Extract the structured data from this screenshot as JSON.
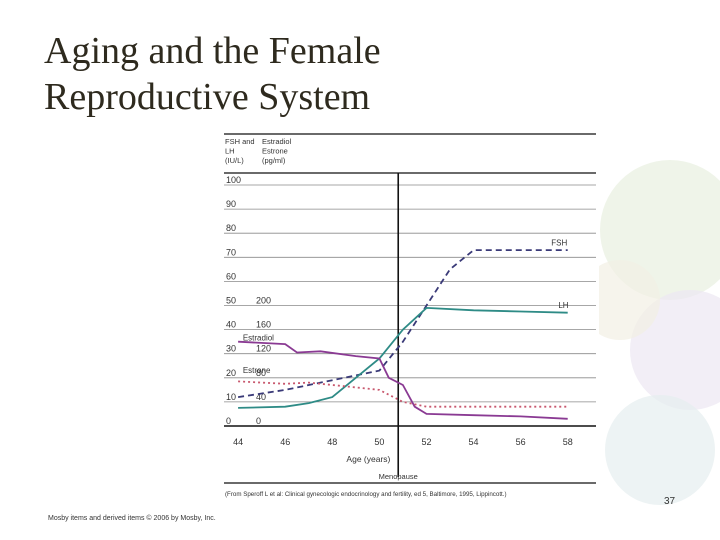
{
  "slide": {
    "title_line1": "Aging and the Female",
    "title_line2": "Reproductive System",
    "footer": "Mosby items and derived items © 2006 by Mosby, Inc.",
    "page_number": "37"
  },
  "chart_data": {
    "type": "line",
    "title": "",
    "left_axis_header": [
      "FSH and",
      "LH",
      "(IU/L)"
    ],
    "right_axis_header": [
      "Estradiol",
      "Estrone",
      "(pg/ml)"
    ],
    "xlabel": "Age (years)",
    "x_ticks": [
      "44",
      "46",
      "48",
      "50",
      "52",
      "54",
      "56",
      "58"
    ],
    "xlim": [
      43.4,
      59.2
    ],
    "y_ticks_iu": [
      "100",
      "90",
      "80",
      "70",
      "60",
      "50",
      "40",
      "30",
      "20",
      "10",
      "0"
    ],
    "y_ticks_pg": [
      "200",
      "160",
      "120",
      "80",
      "40",
      "0"
    ],
    "y_ticks_pg_values": [
      50,
      40,
      30,
      20,
      10,
      0
    ],
    "ylim": [
      0,
      100
    ],
    "grid": true,
    "menopause": {
      "age": 50.8,
      "label": "Menopause"
    },
    "series": [
      {
        "name": "FSH",
        "color": "#3a3a78",
        "dash": "6,4",
        "x": [
          44,
          46,
          48,
          50,
          51,
          52,
          53,
          54,
          56,
          58
        ],
        "y": [
          12,
          15,
          19,
          23,
          35,
          50,
          65,
          73,
          73,
          73
        ]
      },
      {
        "name": "LH",
        "color": "#2e8b86",
        "dash": "",
        "x": [
          44,
          46,
          47,
          48,
          49,
          50,
          51,
          52,
          54,
          56,
          58
        ],
        "y": [
          7.5,
          8,
          9.5,
          12,
          20,
          28,
          40,
          49,
          48,
          47.5,
          47
        ]
      },
      {
        "name": "Estradiol",
        "color": "#8a3a93",
        "dash": "",
        "x": [
          44,
          46,
          46.5,
          47.5,
          49,
          50,
          50.4,
          51,
          51.5,
          52,
          54,
          56,
          58
        ],
        "y": [
          35,
          34,
          30.5,
          31,
          29,
          28,
          20,
          17,
          8,
          5,
          4.5,
          4,
          3
        ]
      },
      {
        "name": "Estrone",
        "color": "#c8586e",
        "dash": "2,3",
        "x": [
          44,
          45,
          46,
          47,
          48,
          49,
          50,
          51,
          52,
          54,
          56,
          58
        ],
        "y": [
          18.5,
          18,
          17.5,
          18,
          17,
          16,
          15,
          10,
          8,
          8,
          8,
          8
        ]
      }
    ],
    "series_labels": {
      "FSH": {
        "x": 57.3,
        "y": 75
      },
      "LH": {
        "x": 57.6,
        "y": 49
      },
      "Estradiol": {
        "x": 44.2,
        "y": 35.5
      },
      "Estrone": {
        "x": 44.2,
        "y": 22
      }
    },
    "citation": "(From Speroff L et al: Clinical gynecologic endocrinology and fertility, ed 5, Baltimore, 1995, Lippincott.)"
  }
}
